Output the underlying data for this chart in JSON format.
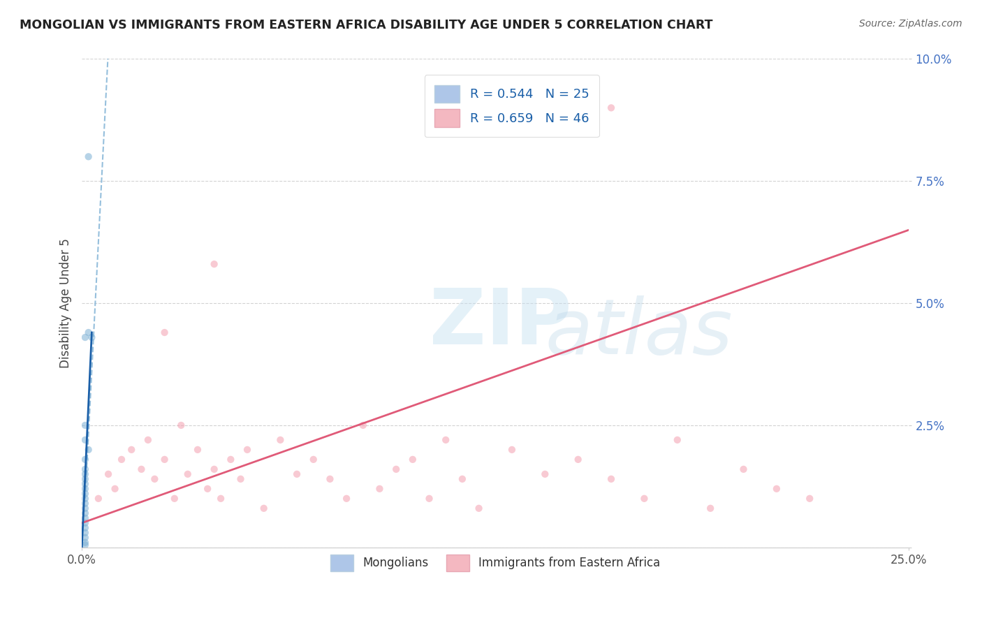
{
  "title": "MONGOLIAN VS IMMIGRANTS FROM EASTERN AFRICA DISABILITY AGE UNDER 5 CORRELATION CHART",
  "source": "Source: ZipAtlas.com",
  "ylabel": "Disability Age Under 5",
  "xlim": [
    0,
    0.25
  ],
  "ylim": [
    0,
    0.1
  ],
  "xticks": [
    0.0,
    0.25
  ],
  "xtick_labels": [
    "0.0%",
    "25.0%"
  ],
  "yticks": [
    0.0,
    0.025,
    0.05,
    0.075,
    0.1
  ],
  "ytick_labels": [
    "",
    "2.5%",
    "5.0%",
    "7.5%",
    "10.0%"
  ],
  "mongolian_color": "#7bafd4",
  "eastern_africa_color": "#f4a0b0",
  "mongolian_line_solid_color": "#1a5fa8",
  "mongolian_line_dash_color": "#7bafd4",
  "eastern_africa_line_color": "#e05a78",
  "background_color": "#ffffff",
  "grid_color": "#c8c8c8",
  "title_color": "#222222",
  "source_color": "#666666",
  "scatter_size": 55,
  "scatter_alpha": 0.55,
  "legend_label_mongolians": "Mongolians",
  "legend_label_eastern": "Immigrants from Eastern Africa",
  "mongolian_x": [
    0.002,
    0.001,
    0.003,
    0.001,
    0.002,
    0.001,
    0.002,
    0.001,
    0.001,
    0.001,
    0.001,
    0.001,
    0.001,
    0.001,
    0.001,
    0.001,
    0.001,
    0.001,
    0.001,
    0.001,
    0.001,
    0.001,
    0.001,
    0.001,
    0.001
  ],
  "mongolian_y": [
    0.08,
    0.043,
    0.043,
    0.025,
    0.044,
    0.022,
    0.02,
    0.018,
    0.016,
    0.015,
    0.014,
    0.013,
    0.012,
    0.011,
    0.01,
    0.009,
    0.008,
    0.007,
    0.006,
    0.005,
    0.004,
    0.003,
    0.002,
    0.001,
    0.0005
  ],
  "eastern_x": [
    0.005,
    0.008,
    0.01,
    0.012,
    0.015,
    0.018,
    0.02,
    0.022,
    0.025,
    0.028,
    0.03,
    0.032,
    0.035,
    0.038,
    0.04,
    0.042,
    0.045,
    0.048,
    0.05,
    0.055,
    0.06,
    0.065,
    0.07,
    0.075,
    0.08,
    0.085,
    0.09,
    0.095,
    0.1,
    0.105,
    0.11,
    0.115,
    0.12,
    0.13,
    0.14,
    0.15,
    0.16,
    0.17,
    0.18,
    0.19,
    0.2,
    0.21,
    0.22,
    0.16,
    0.04,
    0.025
  ],
  "eastern_y": [
    0.01,
    0.015,
    0.012,
    0.018,
    0.02,
    0.016,
    0.022,
    0.014,
    0.018,
    0.01,
    0.025,
    0.015,
    0.02,
    0.012,
    0.016,
    0.01,
    0.018,
    0.014,
    0.02,
    0.008,
    0.022,
    0.015,
    0.018,
    0.014,
    0.01,
    0.025,
    0.012,
    0.016,
    0.018,
    0.01,
    0.022,
    0.014,
    0.008,
    0.02,
    0.015,
    0.018,
    0.014,
    0.01,
    0.022,
    0.008,
    0.016,
    0.012,
    0.01,
    0.09,
    0.058,
    0.044
  ]
}
